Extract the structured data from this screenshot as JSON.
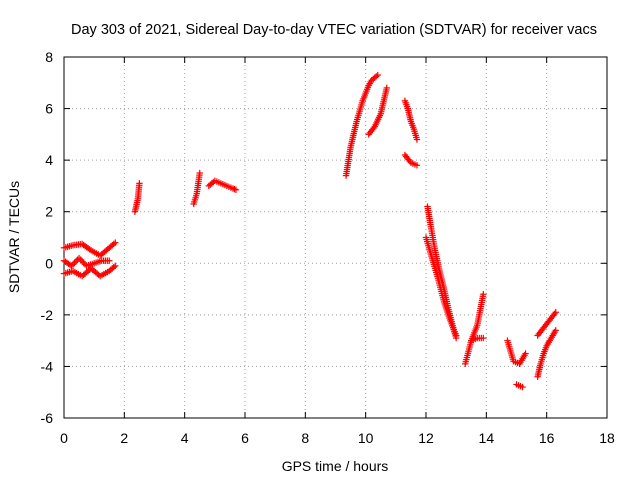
{
  "chart_data": {
    "type": "scatter",
    "title": "Day 303 of 2021, Sidereal Day-to-day VTEC variation (SDTVAR) for receiver vacs",
    "xlabel": "GPS time / hours",
    "ylabel": "SDTVAR / TECUs",
    "xlim": [
      0,
      18
    ],
    "ylim": [
      -6,
      8
    ],
    "xticks": [
      "0",
      "2",
      "4",
      "6",
      "8",
      "10",
      "12",
      "14",
      "16",
      "18"
    ],
    "yticks": [
      "-6",
      "-4",
      "-2",
      "0",
      "2",
      "4",
      "6",
      "8"
    ],
    "grid": true,
    "marker": "+",
    "color": "#ff0000",
    "segments": [
      {
        "x": [
          0.0,
          0.3,
          0.6,
          0.9,
          1.2,
          1.5,
          1.7
        ],
        "y": [
          0.6,
          0.7,
          0.75,
          0.5,
          0.3,
          0.6,
          0.8
        ]
      },
      {
        "x": [
          0.0,
          0.3,
          0.6,
          0.9,
          1.2,
          1.5,
          1.7
        ],
        "y": [
          -0.4,
          -0.3,
          -0.5,
          -0.2,
          -0.5,
          -0.3,
          -0.1
        ]
      },
      {
        "x": [
          0.0,
          0.25,
          0.5,
          0.75,
          1.0,
          1.25,
          1.5
        ],
        "y": [
          0.1,
          -0.1,
          0.2,
          -0.1,
          0.0,
          0.1,
          0.1
        ]
      },
      {
        "x": [
          2.35,
          2.45,
          2.5
        ],
        "y": [
          2.0,
          2.5,
          3.1
        ]
      },
      {
        "x": [
          4.3,
          4.4,
          4.5
        ],
        "y": [
          2.3,
          2.7,
          3.5
        ]
      },
      {
        "x": [
          4.8,
          5.0,
          5.2,
          5.4,
          5.6,
          5.7
        ],
        "y": [
          3.0,
          3.2,
          3.1,
          3.0,
          2.9,
          2.85
        ]
      },
      {
        "x": [
          9.35,
          9.5,
          9.7,
          9.9,
          10.1,
          10.2,
          10.3,
          10.4
        ],
        "y": [
          3.4,
          4.5,
          5.5,
          6.3,
          6.9,
          7.1,
          7.2,
          7.3
        ]
      },
      {
        "x": [
          10.1,
          10.3,
          10.5,
          10.7
        ],
        "y": [
          5.0,
          5.3,
          5.8,
          6.8
        ]
      },
      {
        "x": [
          11.3,
          11.4,
          11.5,
          11.6,
          11.7
        ],
        "y": [
          6.3,
          6.0,
          5.5,
          5.2,
          4.8
        ]
      },
      {
        "x": [
          11.3,
          11.5,
          11.7
        ],
        "y": [
          4.2,
          3.9,
          3.8
        ]
      },
      {
        "x": [
          12.05,
          12.15,
          12.3,
          12.45,
          12.6,
          12.75,
          12.9,
          13.0
        ],
        "y": [
          2.2,
          1.5,
          0.5,
          -0.3,
          -1.0,
          -1.8,
          -2.5,
          -2.9
        ]
      },
      {
        "x": [
          12.0,
          12.2,
          12.4,
          12.6,
          12.8,
          13.0
        ],
        "y": [
          1.0,
          0.2,
          -0.6,
          -1.5,
          -2.2,
          -2.8
        ]
      },
      {
        "x": [
          13.3,
          13.5,
          13.7,
          13.9
        ],
        "y": [
          -3.9,
          -3.0,
          -2.4,
          -1.2
        ]
      },
      {
        "x": [
          13.5,
          13.7,
          13.9
        ],
        "y": [
          -3.0,
          -2.9,
          -2.9
        ]
      },
      {
        "x": [
          14.7,
          14.9,
          15.1,
          15.3
        ],
        "y": [
          -3.0,
          -3.8,
          -3.9,
          -3.5
        ]
      },
      {
        "x": [
          15.0,
          15.2
        ],
        "y": [
          -4.7,
          -4.8
        ]
      },
      {
        "x": [
          15.7,
          15.8,
          15.9,
          16.0,
          16.1,
          16.2,
          16.3
        ],
        "y": [
          -4.4,
          -3.9,
          -3.5,
          -3.2,
          -3.0,
          -2.8,
          -2.6
        ]
      },
      {
        "x": [
          15.7,
          15.9,
          16.1,
          16.3
        ],
        "y": [
          -2.8,
          -2.5,
          -2.2,
          -1.9
        ]
      }
    ]
  }
}
